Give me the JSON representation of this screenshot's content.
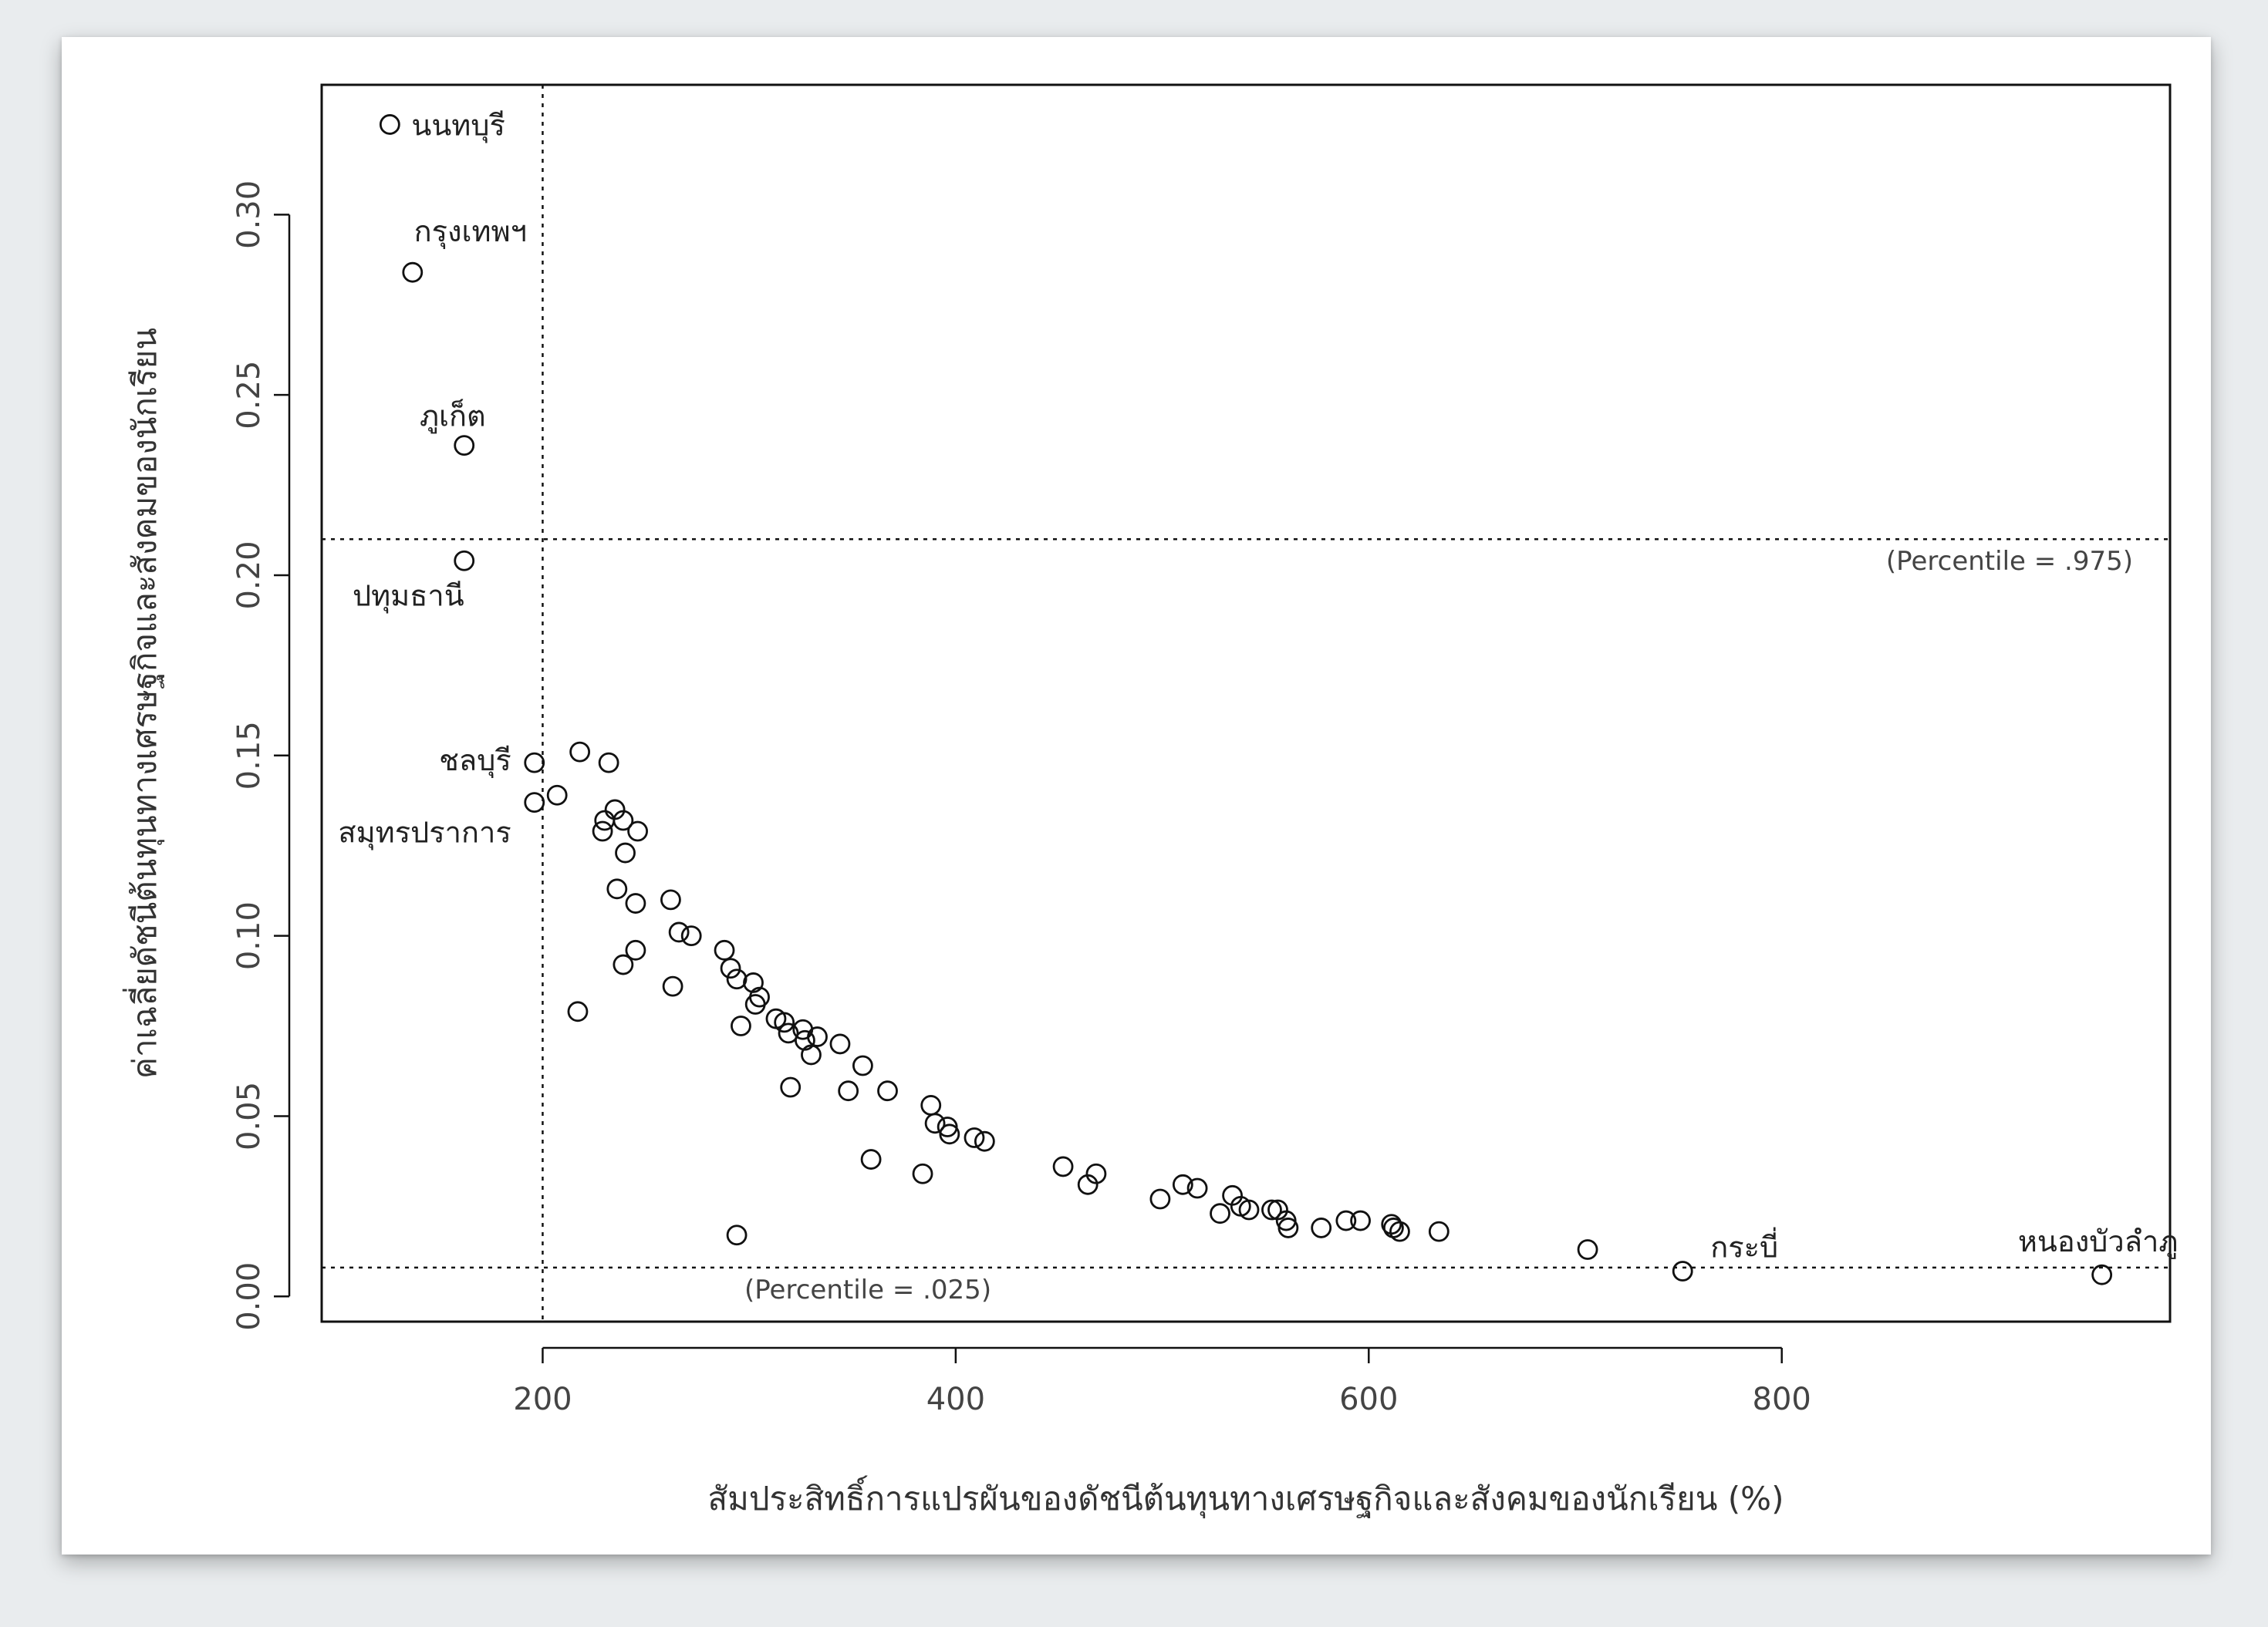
{
  "chart_data": {
    "type": "scatter",
    "xlabel": "สัมประสิทธิ์การแปรผันของดัชนีต้นทุนทางเศรษฐกิจและสังคมของนักเรียน (%)",
    "ylabel": "ค่าเฉลี่ยดัชนีต้นทุนทางเศรษฐกิจและสังคมของนักเรียน",
    "xlim": [
      93,
      988
    ],
    "ylim": [
      -0.007,
      0.336
    ],
    "xticks": [
      "200",
      "400",
      "600",
      "800"
    ],
    "yticks": [
      "0.00",
      "0.05",
      "0.10",
      "0.15",
      "0.20",
      "0.25",
      "0.30"
    ],
    "grid": false,
    "reference_lines": [
      {
        "orientation": "horizontal",
        "value": 0.21,
        "label": "(Percentile = .975)"
      },
      {
        "orientation": "horizontal",
        "value": 0.008,
        "label": "(Percentile = .025)"
      },
      {
        "orientation": "vertical",
        "value": 200,
        "label": ""
      }
    ],
    "labeled_points": [
      {
        "label": "นนทบุรี",
        "x": 126,
        "y": 0.325
      },
      {
        "label": "กรุงเทพฯ",
        "x": 137,
        "y": 0.284
      },
      {
        "label": "ภูเก็ต",
        "x": 162,
        "y": 0.236
      },
      {
        "label": "ปทุมธานี",
        "x": 162,
        "y": 0.204
      },
      {
        "label": "ชลบุรี",
        "x": 196,
        "y": 0.148
      },
      {
        "label": "สมุทรปราการ",
        "x": 196,
        "y": 0.137
      },
      {
        "label": "กระบี่",
        "x": 752,
        "y": 0.007
      },
      {
        "label": "หนองบัวลำภู",
        "x": 955,
        "y": 0.006
      }
    ],
    "points": [
      [
        207,
        0.139
      ],
      [
        218,
        0.151
      ],
      [
        232,
        0.148
      ],
      [
        230,
        0.132
      ],
      [
        235,
        0.135
      ],
      [
        239,
        0.132
      ],
      [
        246,
        0.129
      ],
      [
        229,
        0.129
      ],
      [
        240,
        0.123
      ],
      [
        236,
        0.113
      ],
      [
        245,
        0.109
      ],
      [
        239,
        0.092
      ],
      [
        245,
        0.096
      ],
      [
        217,
        0.079
      ],
      [
        262,
        0.11
      ],
      [
        266,
        0.101
      ],
      [
        272,
        0.1
      ],
      [
        263,
        0.086
      ],
      [
        288,
        0.096
      ],
      [
        291,
        0.091
      ],
      [
        294,
        0.088
      ],
      [
        302,
        0.087
      ],
      [
        303,
        0.081
      ],
      [
        305,
        0.083
      ],
      [
        296,
        0.075
      ],
      [
        313,
        0.077
      ],
      [
        317,
        0.076
      ],
      [
        319,
        0.073
      ],
      [
        326,
        0.074
      ],
      [
        327,
        0.071
      ],
      [
        333,
        0.072
      ],
      [
        330,
        0.067
      ],
      [
        344,
        0.07
      ],
      [
        355,
        0.064
      ],
      [
        367,
        0.057
      ],
      [
        348,
        0.057
      ],
      [
        320,
        0.058
      ],
      [
        359,
        0.038
      ],
      [
        388,
        0.053
      ],
      [
        390,
        0.048
      ],
      [
        396,
        0.047
      ],
      [
        397,
        0.045
      ],
      [
        409,
        0.044
      ],
      [
        414,
        0.043
      ],
      [
        384,
        0.034
      ],
      [
        294,
        0.017
      ],
      [
        452,
        0.036
      ],
      [
        468,
        0.034
      ],
      [
        464,
        0.031
      ],
      [
        499,
        0.027
      ],
      [
        510,
        0.031
      ],
      [
        517,
        0.03
      ],
      [
        528,
        0.023
      ],
      [
        534,
        0.028
      ],
      [
        538,
        0.025
      ],
      [
        542,
        0.024
      ],
      [
        553,
        0.024
      ],
      [
        556,
        0.024
      ],
      [
        560,
        0.021
      ],
      [
        561,
        0.019
      ],
      [
        577,
        0.019
      ],
      [
        589,
        0.021
      ],
      [
        596,
        0.021
      ],
      [
        611,
        0.02
      ],
      [
        612,
        0.019
      ],
      [
        615,
        0.018
      ],
      [
        634,
        0.018
      ],
      [
        706,
        0.013
      ]
    ]
  }
}
